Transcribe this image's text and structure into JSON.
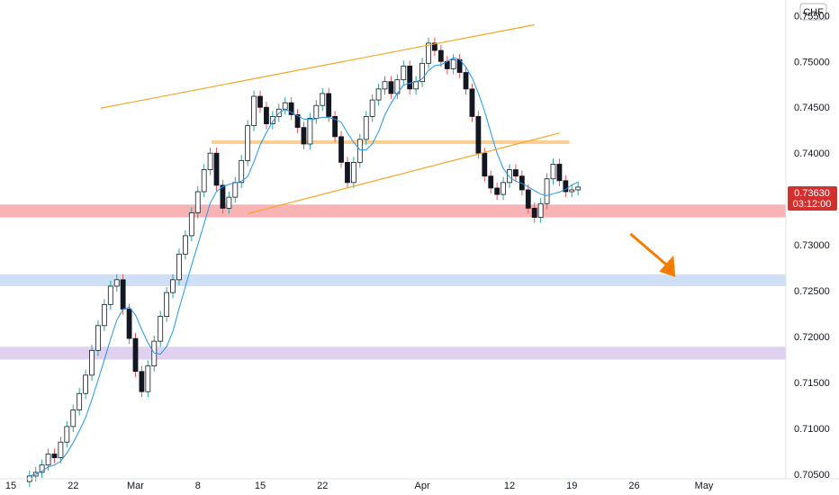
{
  "chart_data": {
    "type": "candlestick",
    "instrument_currency": "CHF",
    "x_ticks": [
      "15",
      "22",
      "Mar",
      "8",
      "15",
      "22",
      "Apr",
      "12",
      "19",
      "26",
      "May"
    ],
    "y_ticks": [
      "0.75500",
      "0.75000",
      "0.74500",
      "0.74000",
      "0.73000",
      "0.72500",
      "0.72000",
      "0.71500",
      "0.71000",
      "0.70500"
    ],
    "ylim": [
      0.7045,
      0.7567
    ],
    "last_price": "0.73630",
    "countdown": "03:12:00",
    "zones": [
      {
        "low": 0.733,
        "high": 0.7344,
        "color": "#f7a7a7"
      },
      {
        "low": 0.7255,
        "high": 0.7268,
        "color": "#c5d9f5"
      },
      {
        "low": 0.7175,
        "high": 0.7189,
        "color": "#d9c9ec"
      }
    ],
    "horizontal_level": {
      "value": 0.7412,
      "color": "#fbcf94"
    },
    "trend_lines": [
      {
        "from": [
          7.2,
          0.7449
        ],
        "to": [
          42.0,
          0.754
        ]
      },
      {
        "from": [
          19.0,
          0.7334
        ],
        "to": [
          44.0,
          0.7422
        ]
      }
    ],
    "close_series": [
      0.7048,
      0.7052,
      0.706,
      0.7072,
      0.7068,
      0.7085,
      0.7102,
      0.712,
      0.7138,
      0.7158,
      0.7185,
      0.7212,
      0.7235,
      0.7255,
      0.7262,
      0.723,
      0.7198,
      0.7162,
      0.714,
      0.7168,
      0.7195,
      0.7222,
      0.7248,
      0.7262,
      0.729,
      0.731,
      0.7335,
      0.7358,
      0.7382,
      0.74,
      0.7365,
      0.734,
      0.7352,
      0.7368,
      0.7392,
      0.743,
      0.7462,
      0.745,
      0.7432,
      0.744,
      0.7448,
      0.7455,
      0.7442,
      0.7428,
      0.741,
      0.7438,
      0.7452,
      0.7465,
      0.744,
      0.7418,
      0.739,
      0.7368,
      0.739,
      0.7415,
      0.744,
      0.7458,
      0.747,
      0.7478,
      0.7465,
      0.748,
      0.7495,
      0.747,
      0.7478,
      0.7498,
      0.752,
      0.7512,
      0.75,
      0.7492,
      0.7502,
      0.7488,
      0.747,
      0.744,
      0.74,
      0.7375,
      0.7362,
      0.7355,
      0.7368,
      0.7382,
      0.7375,
      0.736,
      0.734,
      0.733,
      0.7345,
      0.7372,
      0.7388,
      0.737,
      0.7358,
      0.736,
      0.7363
    ],
    "ma_color": "#2196f3",
    "projection_arrow": {
      "from": [
        49.7,
        0.7312
      ],
      "to": [
        53.3,
        0.7265
      ],
      "color": "#f57c00"
    }
  }
}
